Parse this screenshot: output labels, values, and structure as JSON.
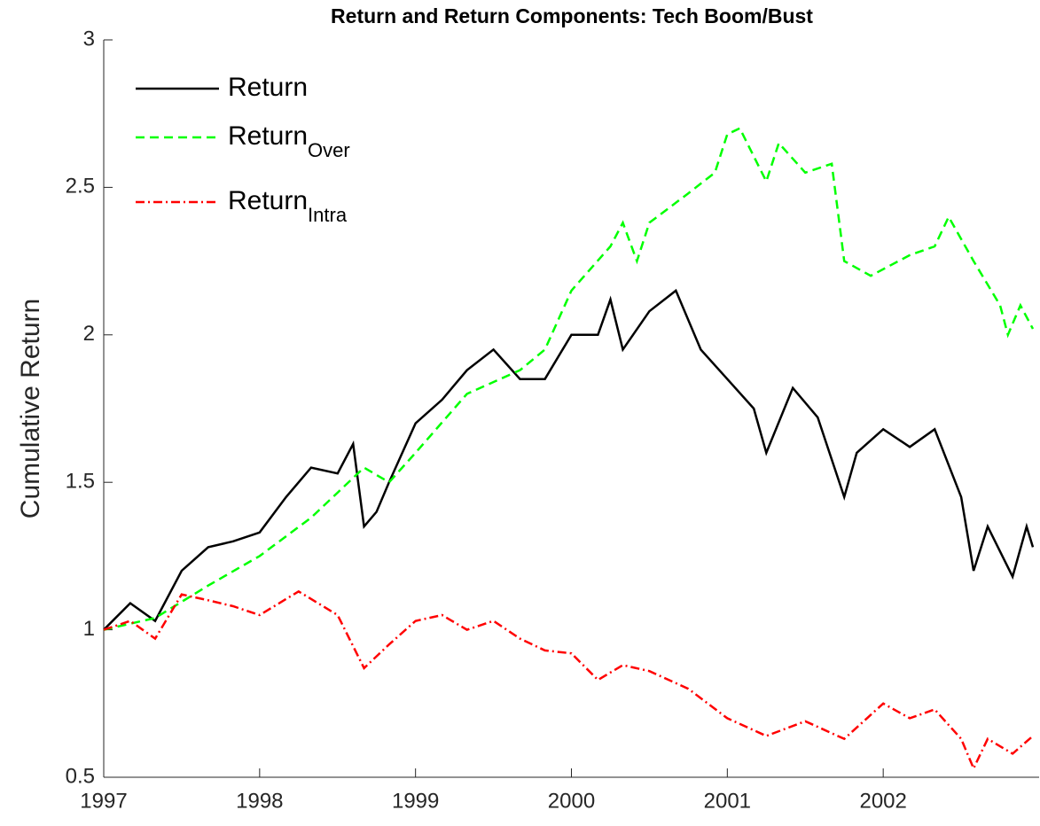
{
  "chart_data": {
    "type": "line",
    "title": "Return and Return Components: Tech Boom/Bust",
    "y_label": "Cumulative Return",
    "xlim": [
      1997,
      2003
    ],
    "ylim": [
      0.5,
      3
    ],
    "xticks": [
      1997,
      1998,
      1999,
      2000,
      2001,
      2002
    ],
    "yticks": [
      0.5,
      1,
      1.5,
      2,
      2.5,
      3
    ],
    "legend": "upper-left",
    "series": [
      {
        "name": "Return",
        "color": "#000000",
        "dash": "solid",
        "x": [
          1997.0,
          1997.17,
          1997.33,
          1997.5,
          1997.67,
          1997.83,
          1998.0,
          1998.17,
          1998.33,
          1998.5,
          1998.6,
          1998.67,
          1998.75,
          1998.83,
          1999.0,
          1999.17,
          1999.33,
          1999.5,
          1999.67,
          1999.83,
          2000.0,
          2000.17,
          2000.25,
          2000.33,
          2000.5,
          2000.67,
          2000.83,
          2001.0,
          2001.17,
          2001.25,
          2001.42,
          2001.58,
          2001.75,
          2001.83,
          2002.0,
          2002.17,
          2002.33,
          2002.5,
          2002.58,
          2002.67,
          2002.83,
          2002.92,
          2002.96
        ],
        "values": [
          1.0,
          1.09,
          1.03,
          1.2,
          1.28,
          1.3,
          1.33,
          1.45,
          1.55,
          1.53,
          1.63,
          1.35,
          1.4,
          1.5,
          1.7,
          1.78,
          1.88,
          1.95,
          1.85,
          1.85,
          2.0,
          2.0,
          2.12,
          1.95,
          2.08,
          2.15,
          1.95,
          1.85,
          1.75,
          1.6,
          1.82,
          1.72,
          1.45,
          1.6,
          1.68,
          1.62,
          1.68,
          1.45,
          1.2,
          1.35,
          1.18,
          1.35,
          1.28
        ]
      },
      {
        "name": "Return",
        "subscript": "Over",
        "color": "#00ff00",
        "dash": "dashed",
        "x": [
          1997.0,
          1997.33,
          1997.67,
          1998.0,
          1998.33,
          1998.67,
          1998.83,
          1999.0,
          1999.33,
          1999.67,
          1999.83,
          2000.0,
          2000.25,
          2000.33,
          2000.42,
          2000.5,
          2000.75,
          2000.92,
          2001.0,
          2001.08,
          2001.25,
          2001.33,
          2001.5,
          2001.67,
          2001.75,
          2001.92,
          2002.17,
          2002.33,
          2002.42,
          2002.58,
          2002.75,
          2002.8,
          2002.88,
          2002.96
        ],
        "values": [
          1.0,
          1.04,
          1.15,
          1.25,
          1.38,
          1.55,
          1.5,
          1.6,
          1.8,
          1.88,
          1.95,
          2.15,
          2.3,
          2.38,
          2.25,
          2.38,
          2.48,
          2.55,
          2.68,
          2.7,
          2.52,
          2.65,
          2.55,
          2.58,
          2.25,
          2.2,
          2.27,
          2.3,
          2.4,
          2.25,
          2.1,
          2.0,
          2.1,
          2.02
        ]
      },
      {
        "name": "Return",
        "subscript": "Intra",
        "color": "#ff0000",
        "dash": "dashdot",
        "x": [
          1997.0,
          1997.17,
          1997.33,
          1997.5,
          1997.67,
          1997.83,
          1998.0,
          1998.25,
          1998.5,
          1998.67,
          1998.83,
          1999.0,
          1999.17,
          1999.33,
          1999.5,
          1999.67,
          1999.83,
          2000.0,
          2000.17,
          2000.33,
          2000.5,
          2000.75,
          2001.0,
          2001.25,
          2001.5,
          2001.75,
          2002.0,
          2002.17,
          2002.33,
          2002.5,
          2002.58,
          2002.67,
          2002.83,
          2002.96
        ],
        "values": [
          1.0,
          1.03,
          0.97,
          1.12,
          1.1,
          1.08,
          1.05,
          1.13,
          1.05,
          0.87,
          0.95,
          1.03,
          1.05,
          1.0,
          1.03,
          0.97,
          0.93,
          0.92,
          0.83,
          0.88,
          0.86,
          0.8,
          0.7,
          0.64,
          0.69,
          0.63,
          0.75,
          0.7,
          0.73,
          0.63,
          0.53,
          0.63,
          0.58,
          0.64
        ]
      }
    ]
  }
}
